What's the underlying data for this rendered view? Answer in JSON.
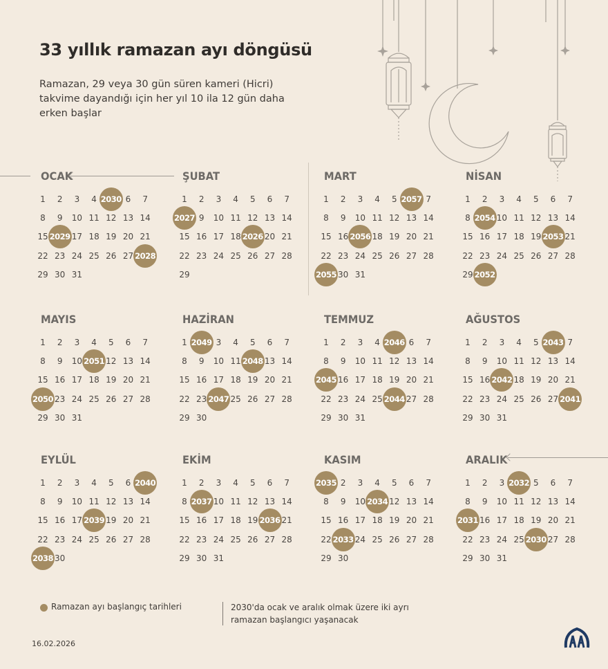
{
  "title": "33 yıllık ramazan ayı döngüsü",
  "subtitle": "Ramazan, 29 veya 30 gün süren kameri (Hicri) takvime dayandığı için her yıl 10 ila 12 gün daha erken başlar",
  "months": [
    {
      "name": "OCAK",
      "start": 1,
      "days": 31,
      "marks": [
        {
          "day": 5,
          "year": "2030"
        },
        {
          "day": 16,
          "year": "2029"
        },
        {
          "day": 28,
          "year": "2028"
        }
      ]
    },
    {
      "name": "ŞUBAT",
      "start": 1,
      "days": 29,
      "marks": [
        {
          "day": 8,
          "year": "2027"
        },
        {
          "day": 19,
          "year": "2026"
        }
      ]
    },
    {
      "name": "MART",
      "start": 1,
      "days": 31,
      "marks": [
        {
          "day": 6,
          "year": "2057"
        },
        {
          "day": 17,
          "year": "2056"
        },
        {
          "day": 29,
          "year": "2055"
        }
      ]
    },
    {
      "name": "NİSAN",
      "start": 1,
      "days": 30,
      "marks": [
        {
          "day": 9,
          "year": "2054"
        },
        {
          "day": 20,
          "year": "2053"
        },
        {
          "day": 30,
          "year": "2052"
        }
      ]
    },
    {
      "name": "MAYIS",
      "start": 1,
      "days": 31,
      "marks": [
        {
          "day": 11,
          "year": "2051"
        },
        {
          "day": 22,
          "year": "2050"
        }
      ]
    },
    {
      "name": "HAZİRAN",
      "start": 1,
      "days": 30,
      "marks": [
        {
          "day": 2,
          "year": "2049"
        },
        {
          "day": 12,
          "year": "2048"
        },
        {
          "day": 24,
          "year": "2047"
        }
      ]
    },
    {
      "name": "TEMMUZ",
      "start": 1,
      "days": 31,
      "marks": [
        {
          "day": 5,
          "year": "2046"
        },
        {
          "day": 15,
          "year": "2045"
        },
        {
          "day": 26,
          "year": "2044"
        }
      ]
    },
    {
      "name": "AĞUSTOS",
      "start": 1,
      "days": 31,
      "marks": [
        {
          "day": 6,
          "year": "2043"
        },
        {
          "day": 17,
          "year": "2042"
        },
        {
          "day": 28,
          "year": "2041"
        }
      ]
    },
    {
      "name": "EYLÜL",
      "start": 1,
      "days": 30,
      "marks": [
        {
          "day": 7,
          "year": "2040"
        },
        {
          "day": 18,
          "year": "2039"
        },
        {
          "day": 29,
          "year": "2038"
        }
      ]
    },
    {
      "name": "EKİM",
      "start": 1,
      "days": 31,
      "marks": [
        {
          "day": 9,
          "year": "2037"
        },
        {
          "day": 20,
          "year": "2036"
        }
      ]
    },
    {
      "name": "KASIM",
      "start": 1,
      "days": 30,
      "marks": [
        {
          "day": 1,
          "year": "2035"
        },
        {
          "day": 11,
          "year": "2034"
        },
        {
          "day": 23,
          "year": "2033"
        }
      ]
    },
    {
      "name": "ARALIK",
      "start": 1,
      "days": 31,
      "marks": [
        {
          "day": 4,
          "year": "2032"
        },
        {
          "day": 15,
          "year": "2031"
        },
        {
          "day": 26,
          "year": "2030"
        }
      ]
    }
  ],
  "legend": {
    "label": "Ramazan ayı başlangıç tarihleri",
    "color": "#a48c63"
  },
  "note": "2030'da ocak ve aralık olmak üzere iki ayrı ramazan başlangıcı yaşanacak",
  "date": "16.02.2026",
  "logo": "aa-logo",
  "colors": {
    "background": "#f3ebe0",
    "accent": "#a48c63",
    "text": "#3d3a36"
  }
}
